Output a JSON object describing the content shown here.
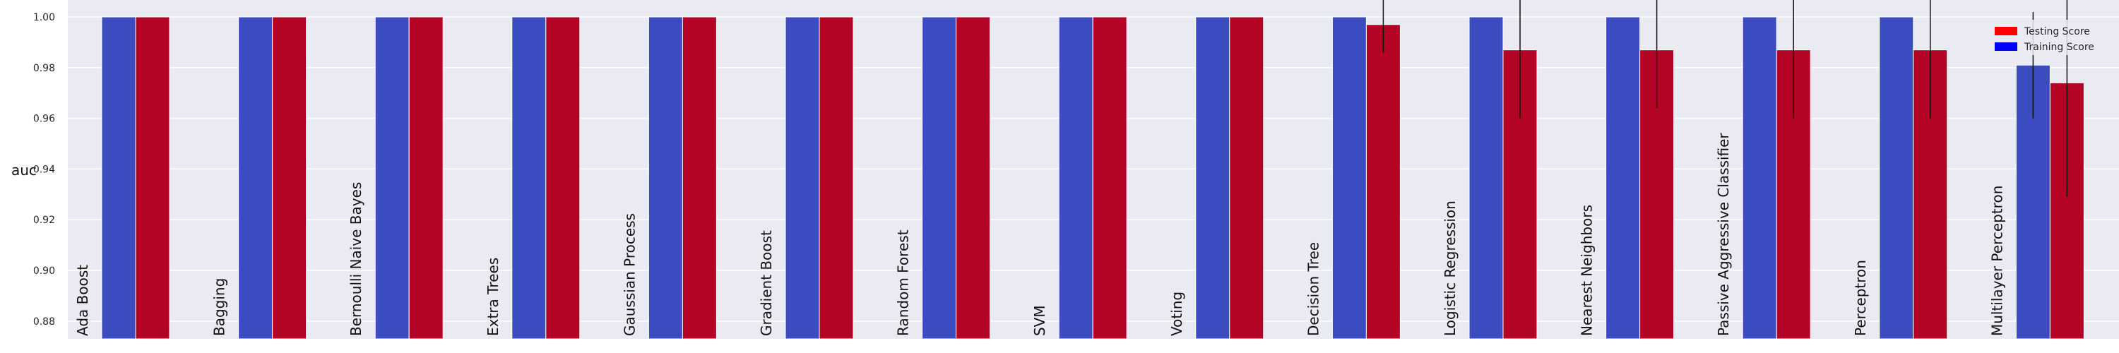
{
  "chart_data": {
    "type": "bar",
    "ylabel": "auc",
    "ylim": [
      0.873,
      1.0
    ],
    "yticks": [
      "0.88",
      "0.90",
      "0.92",
      "0.94",
      "0.96",
      "0.98",
      "1.00"
    ],
    "grid": true,
    "legend_position": "top-right",
    "categories": [
      "Ada Boost",
      "Bagging",
      "Bernoulli Naive Bayes",
      "Extra Trees",
      "Gaussian Process",
      "Gradient Boost",
      "Random Forest",
      "SVM",
      "Voting",
      "Decision Tree",
      "Logistic Regression",
      "Nearest Neighbors",
      "Passive Aggressive Classifier",
      "Perceptron",
      "Multilayer Perceptron"
    ],
    "series": [
      {
        "name": "Training Score",
        "color": "#3a4cc0",
        "values": [
          1.0,
          1.0,
          1.0,
          1.0,
          1.0,
          1.0,
          1.0,
          1.0,
          1.0,
          1.0,
          1.0,
          1.0,
          1.0,
          1.0,
          0.981
        ],
        "err": [
          0,
          0,
          0,
          0,
          0,
          0,
          0,
          0,
          0,
          0,
          0,
          0,
          0,
          0,
          0.021
        ]
      },
      {
        "name": "Testing Score",
        "color": "#b40426",
        "values": [
          1.0,
          1.0,
          1.0,
          1.0,
          1.0,
          1.0,
          1.0,
          1.0,
          1.0,
          0.997,
          0.987,
          0.987,
          0.987,
          0.987,
          0.974
        ],
        "err": [
          0,
          0,
          0,
          0,
          0,
          0,
          0,
          0,
          0,
          0.011,
          0.027,
          0.023,
          0.027,
          0.027,
          0.045
        ]
      }
    ],
    "legend": [
      {
        "label": "Testing Score",
        "color": "#ff0000"
      },
      {
        "label": "Training Score",
        "color": "#0000ff"
      }
    ]
  }
}
